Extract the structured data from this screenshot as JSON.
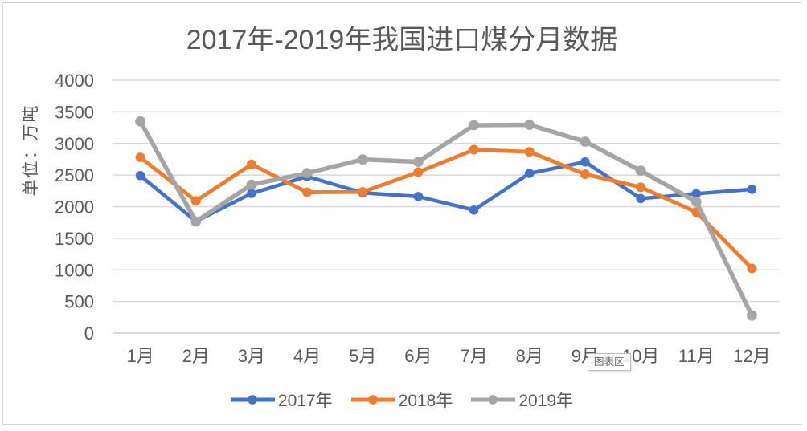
{
  "frame": {
    "border_color": "#d4d4d4",
    "background": "#ffffff"
  },
  "chart_data": {
    "type": "line",
    "title": "2017年-2019年我国进口煤分月数据",
    "ylabel": "单位：万吨",
    "categories": [
      "1月",
      "2月",
      "3月",
      "4月",
      "5月",
      "6月",
      "7月",
      "8月",
      "9月",
      "10月",
      "11月",
      "12月"
    ],
    "ylim": [
      0,
      4000
    ],
    "ytick_step": 500,
    "grid": true,
    "grid_color": "#d9d9d9",
    "axis_text_color": "#595959",
    "legend_position": "bottom",
    "series": [
      {
        "name": "2017年",
        "color": "#4472C4",
        "values": [
          2491,
          1768,
          2209,
          2478,
          2219,
          2160,
          1946,
          2527,
          2708,
          2128,
          2205,
          2274
        ]
      },
      {
        "name": "2018年",
        "color": "#ED7D31",
        "values": [
          2781,
          2090,
          2670,
          2228,
          2233,
          2547,
          2901,
          2868,
          2514,
          2308,
          1915,
          1023
        ]
      },
      {
        "name": "2019年",
        "color": "#A5A5A5",
        "values": [
          3350,
          1764,
          2348,
          2530,
          2747,
          2710,
          3289,
          3295,
          3029,
          2569,
          2078,
          277
        ]
      }
    ]
  },
  "tooltip": {
    "label": "图表区"
  }
}
